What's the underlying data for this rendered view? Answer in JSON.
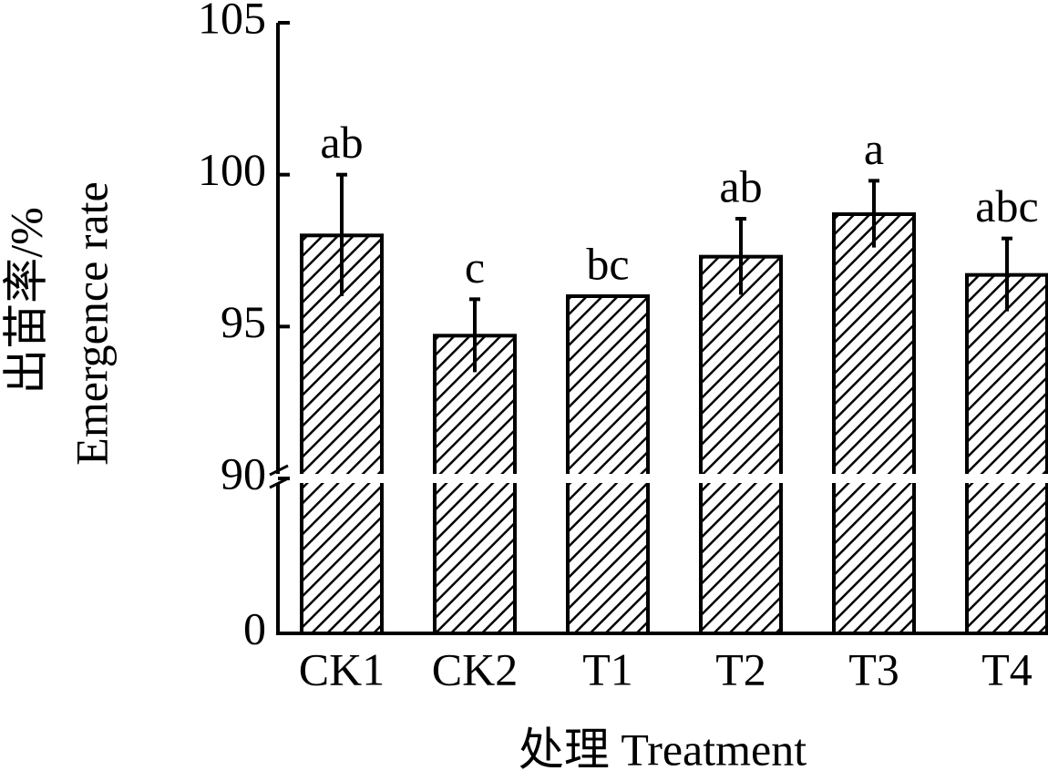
{
  "chart_data": {
    "type": "bar",
    "x_label": "处理 Treatment",
    "y_label": [
      "出苗率/%",
      "Emergence rate"
    ],
    "categories": [
      "CK1",
      "CK2",
      "T1",
      "T2",
      "T3",
      "T4"
    ],
    "values": [
      98.0,
      94.7,
      96.0,
      97.3,
      98.7,
      96.7
    ],
    "errors": [
      2.0,
      1.2,
      0,
      1.25,
      1.1,
      1.2
    ],
    "letters": [
      "ab",
      "c",
      "bc",
      "ab",
      "a",
      "abc"
    ],
    "ylim": [
      0,
      105
    ],
    "ybreak": 90,
    "yticks": [
      0,
      90,
      95,
      100,
      105
    ],
    "color": "#000000",
    "hatch": true,
    "grid": false
  }
}
